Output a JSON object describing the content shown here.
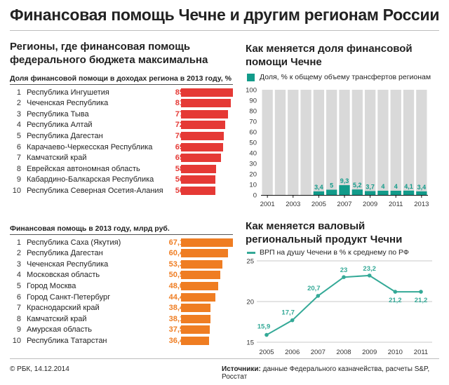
{
  "title": "Финансовая помощь Чечне и другим регионам России",
  "left": {
    "heading_line1": "Регионы, где финансовая помощь",
    "heading_line2": "федерального бюджета максимальна",
    "table1_title": "Доля финансовой помощи в доходах региона в 2013 году, %",
    "table2_title": "Финансовая помощь в 2013 году, млрд руб."
  },
  "right": {
    "chart1_heading_line1": "Как меняется доля финансовой",
    "chart1_heading_line2": "помощи Чечне",
    "chart1_legend": "Доля, % к общему объему трансфертов регионам",
    "chart2_heading_line1": "Как меняется валовый",
    "chart2_heading_line2": "региональный продукт Чечни",
    "chart2_legend": "ВРП на душу Чечени в % к среднему по РФ"
  },
  "colors": {
    "red": "#e53935",
    "orange": "#ef7d22",
    "teal": "#129b8a",
    "gray": "#d9d9d9",
    "line": "#34a997"
  },
  "footer": {
    "left": "© РБК, 14.12.2014",
    "sources_label": "Источники:",
    "sources_text": " данные Федерального казначейства, расчеты S&P, Росстат"
  },
  "chart_data": [
    {
      "type": "bar",
      "title": "Доля финансовой помощи в доходах региона в 2013 году, %",
      "categories": [
        "Республика Ингушетия",
        "Чеченская Республика",
        "Республика Тыва",
        "Республика Алтай",
        "Республика Дагестан",
        "Карачаево-Черкесская Республика",
        "Камчатский край",
        "Еврейская автономная область",
        "Кабардино-Балкарская Республика",
        "Республика Северная Осетия-Алания"
      ],
      "ranks": [
        "1",
        "2",
        "3",
        "4",
        "5",
        "6",
        "7",
        "8",
        "9",
        "10"
      ],
      "values": [
        85,
        81,
        77,
        72,
        70,
        69,
        65,
        58,
        56,
        56
      ],
      "labels": [
        "85",
        "81",
        "77",
        "72",
        "70",
        "69",
        "65",
        "58",
        "56",
        "56"
      ]
    },
    {
      "type": "bar",
      "title": "Финансовая помощь в 2013 году, млрд руб.",
      "categories": [
        "Республика Саха (Якутия)",
        "Республика Дагестан",
        "Чеченская Республика",
        "Московская область",
        "Город Москва",
        "Город Санкт-Петербург",
        "Краснодарский край",
        "Камчатский край",
        "Амурская область",
        "Республика Татарстан"
      ],
      "ranks": [
        "1",
        "2",
        "3",
        "4",
        "5",
        "6",
        "7",
        "8",
        "9",
        "10"
      ],
      "values": [
        67.1,
        60.4,
        53.3,
        50.5,
        48.0,
        44.4,
        38.4,
        38.1,
        37.5,
        36.4
      ],
      "labels": [
        "67,1",
        "60,4",
        "53,3",
        "50,5",
        "48,0",
        "44,4",
        "38,4",
        "38,1",
        "37,5",
        "36,4"
      ]
    },
    {
      "type": "bar",
      "title": "Как меняется доля финансовой помощи Чечне",
      "x": [
        2001,
        2002,
        2003,
        2004,
        2005,
        2006,
        2007,
        2008,
        2009,
        2010,
        2011,
        2012,
        2013
      ],
      "values": [
        0,
        0,
        0,
        0,
        3.4,
        5,
        9.3,
        5.2,
        3.7,
        4,
        4,
        4.1,
        3.4
      ],
      "labels": [
        "",
        "",
        "",
        "",
        "3,4",
        "5",
        "9,3",
        "5,2",
        "3,7",
        "4",
        "4",
        "4,1",
        "3,4"
      ],
      "ylim": [
        0,
        100
      ],
      "yticks": [
        "0",
        "10",
        "20",
        "30",
        "40",
        "50",
        "60",
        "70",
        "80",
        "90",
        "100"
      ],
      "xticks": [
        "2001",
        "2003",
        "2005",
        "2007",
        "2009",
        "2011",
        "2013"
      ],
      "series_name": "Доля, % к общему объему трансфертов регионам"
    },
    {
      "type": "line",
      "title": "Как меняется валовый региональный продукт Чечни",
      "x": [
        2005,
        2006,
        2007,
        2008,
        2009,
        2010,
        2011
      ],
      "values": [
        15.9,
        17.7,
        20.7,
        23,
        23.2,
        21.2,
        21.2
      ],
      "labels": [
        "15,9",
        "17,7",
        "20,7",
        "23",
        "23,2",
        "21,2",
        "21,2"
      ],
      "ylim": [
        15,
        25
      ],
      "yticks": [
        "15",
        "20",
        "25"
      ],
      "xticks": [
        "2005",
        "2006",
        "2007",
        "2008",
        "2009",
        "2010",
        "2011"
      ],
      "series_name": "ВРП на душу Чечени в % к среднему по РФ"
    }
  ]
}
